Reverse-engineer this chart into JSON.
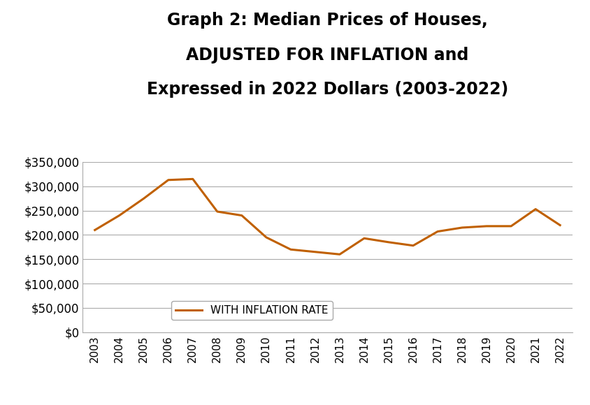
{
  "title_line1": "Graph 2: Median Prices of Houses,",
  "title_line2": "ADJUSTED FOR INFLATION and",
  "title_line3": "Expressed in 2022 Dollars (2003-2022)",
  "years": [
    2003,
    2004,
    2005,
    2006,
    2007,
    2008,
    2009,
    2010,
    2011,
    2012,
    2013,
    2014,
    2015,
    2016,
    2017,
    2018,
    2019,
    2020,
    2021,
    2022
  ],
  "values": [
    210000,
    240000,
    275000,
    313000,
    315000,
    248000,
    240000,
    195000,
    170000,
    165000,
    160000,
    193000,
    185000,
    178000,
    207000,
    215000,
    218000,
    218000,
    253000,
    220000
  ],
  "line_color": "#c06000",
  "line_width": 2.2,
  "ylim": [
    0,
    350000
  ],
  "ytick_step": 50000,
  "legend_label": "WITH INFLATION RATE",
  "background_color": "#ffffff",
  "grid_color": "#aaaaaa",
  "title_fontsize": 17,
  "tick_fontsize": 11,
  "legend_fontsize": 11,
  "ytick_fontsize": 12
}
